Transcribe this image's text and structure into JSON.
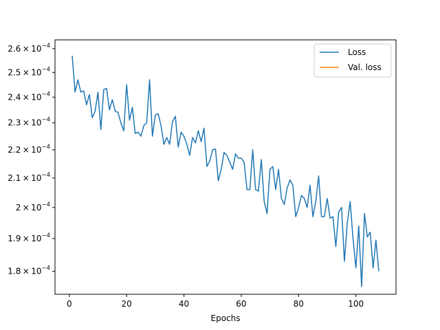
{
  "chart_data": {
    "type": "line",
    "title": "",
    "xlabel": "Epochs",
    "ylabel": "",
    "yscale": "log",
    "xlim": [
      -5,
      114
    ],
    "ylim": [
      0.0001733,
      0.0002638
    ],
    "grid": false,
    "legend_position": "top-right",
    "x_ticks": [
      {
        "value": 0,
        "label": "0"
      },
      {
        "value": 20,
        "label": "20"
      },
      {
        "value": 40,
        "label": "40"
      },
      {
        "value": 60,
        "label": "60"
      },
      {
        "value": 80,
        "label": "80"
      },
      {
        "value": 100,
        "label": "100"
      }
    ],
    "y_ticks": [
      {
        "value": 0.00018,
        "mant": "1.8",
        "exp": "−4"
      },
      {
        "value": 0.00019,
        "mant": "1.9",
        "exp": "−4"
      },
      {
        "value": 0.0002,
        "mant": "2",
        "exp": "−4"
      },
      {
        "value": 0.00021,
        "mant": "2.1",
        "exp": "−4"
      },
      {
        "value": 0.00022,
        "mant": "2.2",
        "exp": "−4"
      },
      {
        "value": 0.00023,
        "mant": "2.3",
        "exp": "−4"
      },
      {
        "value": 0.00024,
        "mant": "2.4",
        "exp": "−4"
      },
      {
        "value": 0.00025,
        "mant": "2.5",
        "exp": "−4"
      },
      {
        "value": 0.00026,
        "mant": "2.6",
        "exp": "−4"
      }
    ],
    "series": [
      {
        "name": "Loss",
        "color": "#1f77b4",
        "x": [
          1,
          2,
          3,
          4,
          5,
          6,
          7,
          8,
          9,
          10,
          11,
          12,
          13,
          14,
          15,
          16,
          17,
          18,
          19,
          20,
          21,
          22,
          23,
          24,
          25,
          26,
          27,
          28,
          29,
          30,
          31,
          32,
          33,
          34,
          35,
          36,
          37,
          38,
          39,
          40,
          41,
          42,
          43,
          44,
          45,
          46,
          47,
          48,
          49,
          50,
          51,
          52,
          53,
          54,
          55,
          56,
          57,
          58,
          59,
          60,
          61,
          62,
          63,
          64,
          65,
          66,
          67,
          68,
          69,
          70,
          71,
          72,
          73,
          74,
          75,
          76,
          77,
          78,
          79,
          80,
          81,
          82,
          83,
          84,
          85,
          86,
          87,
          88,
          89,
          90,
          91,
          92,
          93,
          94,
          95,
          96,
          97,
          98,
          99,
          100,
          101,
          102,
          103,
          104,
          105,
          106,
          107,
          108
        ],
        "values": [
          0.000257,
          0.000242,
          0.000247,
          0.000242,
          0.0002425,
          0.000237,
          0.000241,
          0.000232,
          0.0002345,
          0.000242,
          0.0002275,
          0.000243,
          0.0002435,
          0.000235,
          0.000239,
          0.0002345,
          0.000234,
          0.00023,
          0.000227,
          0.000245,
          0.000231,
          0.000236,
          0.000226,
          0.0002265,
          0.000225,
          0.000229,
          0.00023,
          0.000247,
          0.000225,
          0.000233,
          0.0002335,
          0.000229,
          0.000222,
          0.0002245,
          0.000222,
          0.0002305,
          0.0002325,
          0.000221,
          0.0002265,
          0.000225,
          0.000222,
          0.000218,
          0.0002245,
          0.0002225,
          0.000227,
          0.000223,
          0.000228,
          0.000214,
          0.000216,
          0.00022,
          0.0002203,
          0.000209,
          0.000213,
          0.000219,
          0.000218,
          0.0002155,
          0.000213,
          0.0002185,
          0.000217,
          0.000217,
          0.0002155,
          0.000206,
          0.000206,
          0.00022,
          0.000206,
          0.0002055,
          0.0002165,
          0.000202,
          0.000198,
          0.000213,
          0.000214,
          0.000206,
          0.000213,
          0.000203,
          0.000201,
          0.0002065,
          0.0002093,
          0.0002075,
          0.000197,
          0.0002,
          0.000204,
          0.000203,
          0.0002,
          0.0002075,
          0.000197,
          0.000202,
          0.0002107,
          0.000197,
          0.000197,
          0.000203,
          0.0001965,
          0.000197,
          0.0001875,
          0.0001985,
          0.0002,
          0.000183,
          0.000195,
          0.000202,
          0.00019,
          0.000181,
          0.000194,
          0.0001755,
          0.000198,
          0.0001905,
          0.000192,
          0.000181,
          0.0001895,
          0.00018
        ]
      },
      {
        "name": "Val. loss",
        "color": "#ff7f0e",
        "x": [],
        "values": []
      }
    ]
  }
}
